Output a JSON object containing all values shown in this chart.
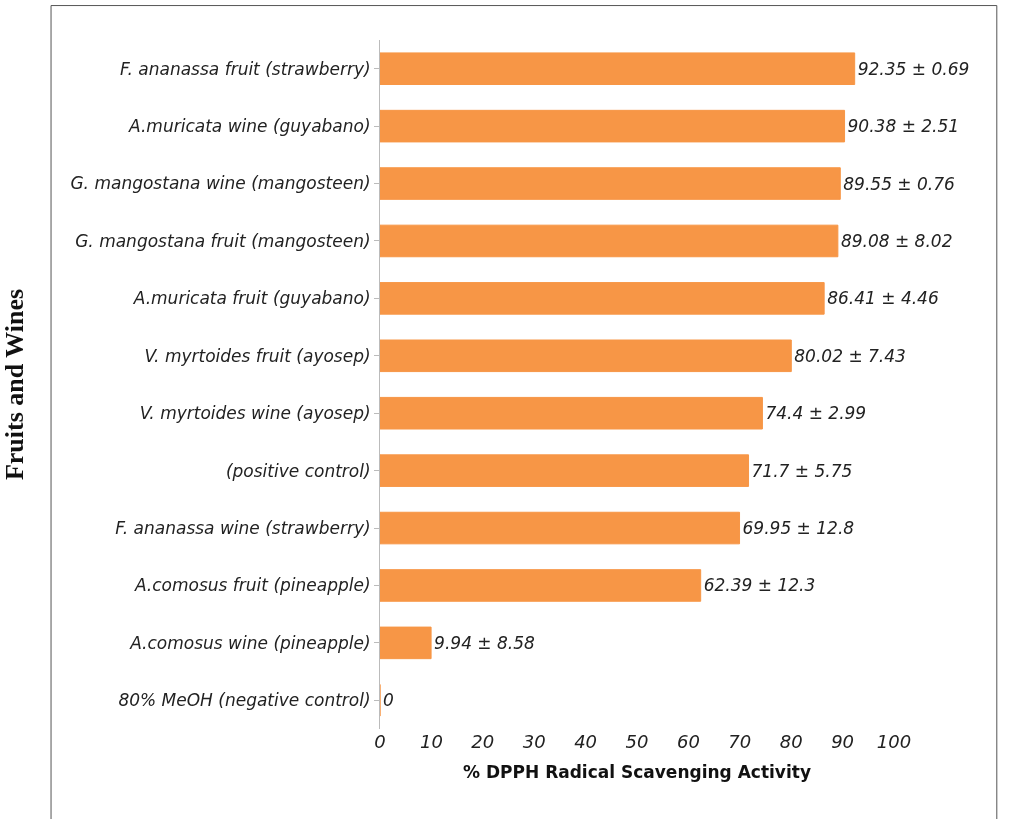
{
  "chart_data": {
    "type": "bar",
    "orientation": "horizontal",
    "xlabel": "% DPPH Radical Scavenging Activity",
    "ylabel": "Fruits and Wines",
    "categories": [
      "F. ananassa fruit (strawberry)",
      "A.muricata wine (guyabano)",
      "G. mangostana wine (mangosteen)",
      "G. mangostana fruit (mangosteen)",
      "A.muricata fruit (guyabano)",
      "V. myrtoides fruit (ayosep)",
      "V. myrtoides wine (ayosep)",
      "(positive control)",
      "F. ananassa wine (strawberry)",
      "A.comosus fruit (pineapple)",
      "A.comosus wine (pineapple)",
      "80% MeOH (negative control)"
    ],
    "values": [
      92.35,
      90.38,
      89.55,
      89.08,
      86.41,
      80.02,
      74.4,
      71.7,
      69.95,
      62.39,
      9.94,
      0
    ],
    "value_labels": [
      "92.35 ± 0.69",
      "90.38 ± 2.51",
      "89.55 ± 0.76",
      "89.08 ± 8.02",
      "86.41 ± 4.46",
      "80.02 ± 7.43",
      "74.4 ± 2.99",
      "71.7 ± 5.75",
      "69.95 ± 12.8",
      "62.39 ± 12.3",
      "9.94 ± 8.58",
      "0"
    ],
    "color": "#f79646",
    "xlim": [
      0,
      100
    ],
    "xticks": [
      0,
      10,
      20,
      30,
      40,
      50,
      60,
      70,
      80,
      90,
      100
    ],
    "legend": false
  }
}
